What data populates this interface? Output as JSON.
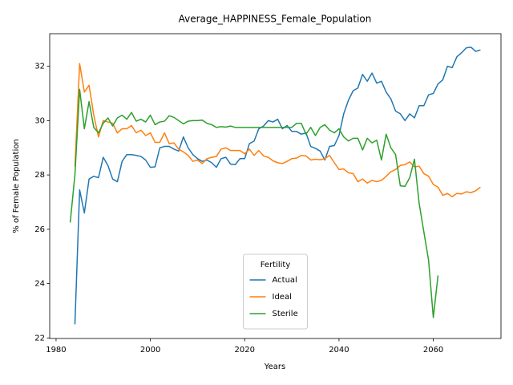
{
  "chart_data": {
    "type": "line",
    "title": "Average_HAPPINESS_Female_Population",
    "x_label": "Years",
    "y_label": "% of Female Population",
    "legend_title": "Fertility",
    "legend": "lower center",
    "grid": false,
    "xlim": [
      1978.65,
      2074.35
    ],
    "ylim": [
      21.98,
      33.2
    ],
    "xticks": [
      1980,
      2000,
      2020,
      2040,
      2060
    ],
    "yticks": [
      22,
      24,
      26,
      28,
      30,
      32
    ],
    "x": [
      1983,
      1984,
      1985,
      1986,
      1987,
      1988,
      1989,
      1990,
      1991,
      1992,
      1993,
      1994,
      1995,
      1996,
      1997,
      1998,
      1999,
      2000,
      2001,
      2002,
      2003,
      2004,
      2005,
      2006,
      2007,
      2008,
      2009,
      2010,
      2011,
      2012,
      2013,
      2014,
      2015,
      2016,
      2017,
      2018,
      2019,
      2020,
      2021,
      2022,
      2023,
      2024,
      2025,
      2026,
      2027,
      2028,
      2029,
      2030,
      2031,
      2032,
      2033,
      2034,
      2035,
      2036,
      2037,
      2038,
      2039,
      2040,
      2041,
      2042,
      2043,
      2044,
      2045,
      2046,
      2047,
      2048,
      2049,
      2050,
      2051,
      2052,
      2053,
      2054,
      2055,
      2056,
      2057,
      2058,
      2059,
      2060,
      2061,
      2062,
      2063,
      2064,
      2065,
      2066,
      2067,
      2068,
      2069,
      2070
    ],
    "series": [
      {
        "name": "Actual",
        "color": "#1f77b4",
        "values": [
          null,
          22.5,
          27.45,
          26.6,
          27.85,
          27.95,
          27.9,
          28.65,
          28.35,
          27.85,
          27.75,
          28.5,
          28.75,
          28.75,
          28.72,
          28.68,
          28.55,
          28.28,
          28.3,
          29.0,
          29.05,
          29.05,
          28.95,
          28.88,
          29.4,
          29.0,
          28.75,
          28.6,
          28.5,
          28.55,
          28.45,
          28.28,
          28.6,
          28.65,
          28.4,
          28.38,
          28.6,
          28.6,
          29.15,
          29.25,
          29.7,
          29.8,
          30.0,
          29.95,
          30.05,
          29.7,
          29.82,
          29.6,
          29.6,
          29.5,
          29.55,
          29.05,
          28.98,
          28.88,
          28.55,
          29.05,
          29.08,
          29.45,
          30.25,
          30.75,
          31.1,
          31.2,
          31.7,
          31.45,
          31.75,
          31.38,
          31.45,
          31.05,
          30.8,
          30.35,
          30.25,
          30.0,
          30.25,
          30.1,
          30.55,
          30.55,
          30.95,
          31.0,
          31.35,
          31.5,
          32.0,
          31.95,
          32.35,
          32.5,
          32.68,
          32.7,
          32.55,
          32.6
        ]
      },
      {
        "name": "Ideal",
        "color": "#ff7f0e",
        "values": [
          null,
          28.3,
          32.1,
          31.05,
          31.3,
          30.2,
          29.4,
          30.0,
          29.95,
          29.9,
          29.55,
          29.7,
          29.7,
          29.82,
          29.55,
          29.65,
          29.45,
          29.55,
          29.2,
          29.2,
          29.55,
          29.15,
          29.18,
          28.95,
          28.85,
          28.72,
          28.5,
          28.55,
          28.42,
          28.6,
          28.65,
          28.68,
          28.95,
          29.0,
          28.9,
          28.9,
          28.9,
          28.78,
          28.95,
          28.72,
          28.9,
          28.7,
          28.65,
          28.52,
          28.45,
          28.42,
          28.5,
          28.6,
          28.62,
          28.72,
          28.7,
          28.55,
          28.58,
          28.56,
          28.6,
          28.72,
          28.45,
          28.2,
          28.22,
          28.08,
          28.05,
          27.75,
          27.85,
          27.7,
          27.8,
          27.75,
          27.8,
          27.95,
          28.12,
          28.2,
          28.35,
          28.38,
          28.48,
          28.3,
          28.32,
          28.05,
          27.95,
          27.65,
          27.55,
          27.25,
          27.32,
          27.2,
          27.32,
          27.3,
          27.38,
          27.35,
          27.42,
          27.55
        ]
      },
      {
        "name": "Sterile",
        "color": "#2ca02c",
        "values": [
          26.25,
          28.0,
          31.15,
          29.7,
          30.7,
          29.75,
          29.55,
          29.9,
          30.1,
          29.8,
          30.1,
          30.2,
          30.05,
          30.3,
          29.98,
          30.05,
          29.95,
          30.2,
          29.85,
          29.95,
          29.98,
          30.18,
          30.12,
          30.0,
          29.88,
          29.98,
          30.0,
          30.0,
          30.02,
          29.9,
          29.85,
          29.75,
          29.78,
          29.76,
          29.8,
          29.75,
          29.75,
          29.75,
          29.75,
          29.75,
          29.75,
          29.75,
          29.75,
          29.75,
          29.75,
          29.75,
          29.75,
          29.75,
          29.9,
          29.9,
          29.5,
          29.75,
          29.45,
          29.75,
          29.85,
          29.65,
          29.55,
          29.7,
          29.4,
          29.25,
          29.35,
          29.35,
          28.92,
          29.35,
          29.18,
          29.28,
          28.55,
          29.5,
          29.0,
          28.75,
          27.6,
          27.58,
          27.9,
          28.58,
          26.95,
          25.9,
          24.85,
          22.75,
          24.3,
          null,
          null,
          null,
          null,
          null,
          null,
          null,
          null,
          null
        ]
      }
    ]
  }
}
